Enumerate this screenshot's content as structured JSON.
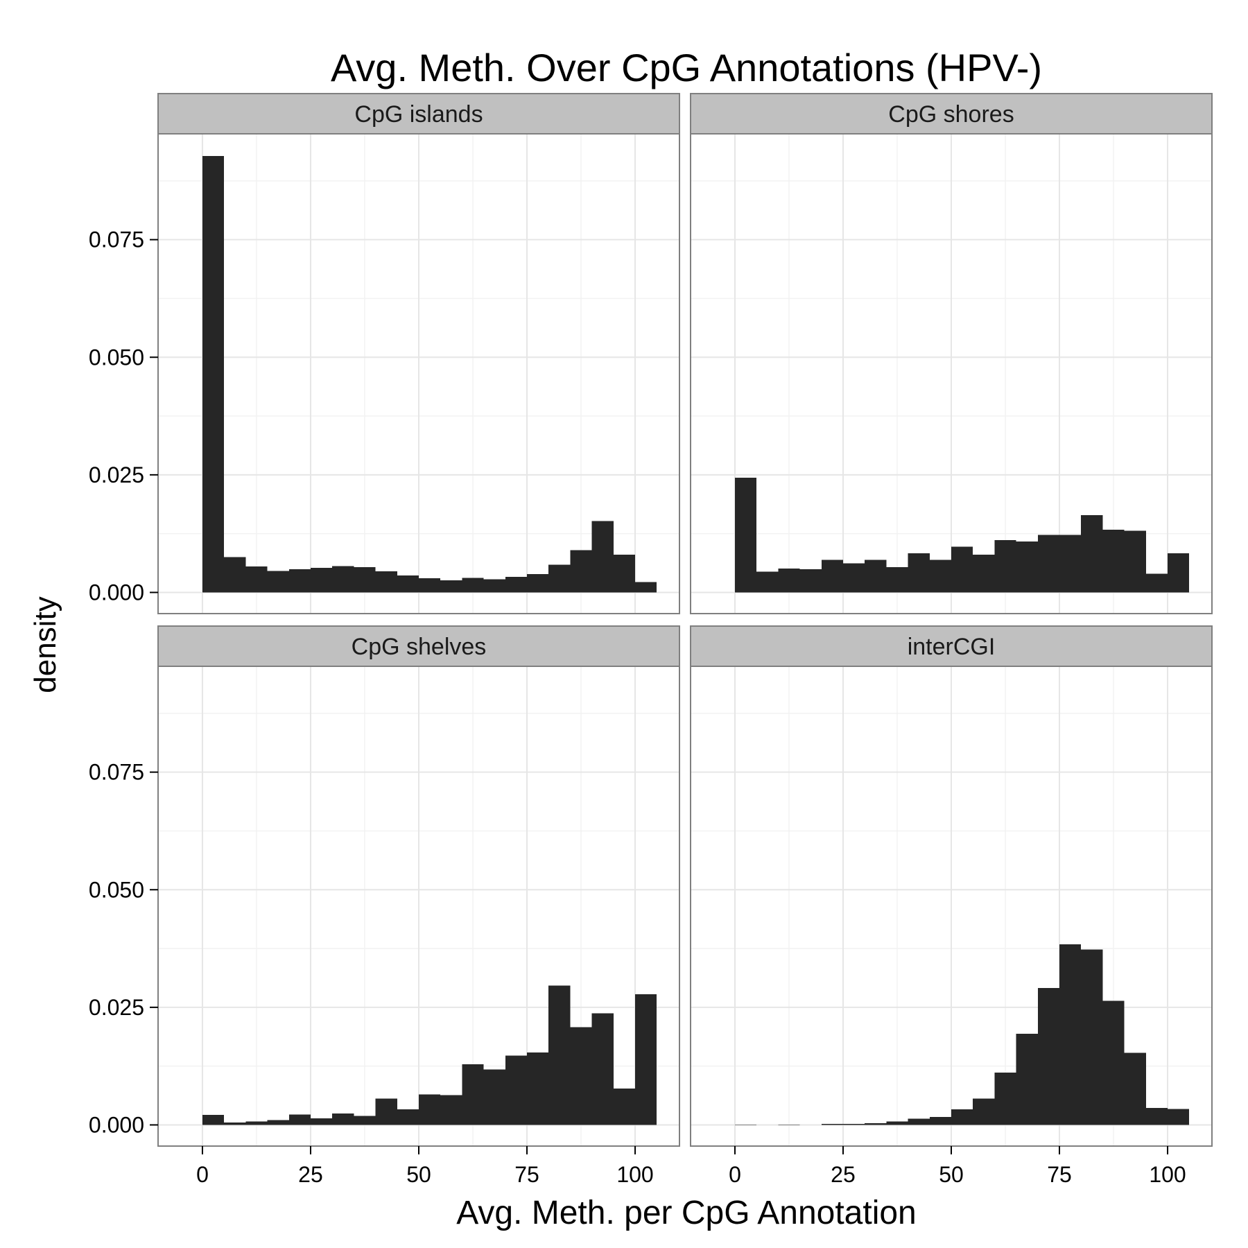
{
  "chart_data": {
    "type": "bar",
    "title": "Avg. Meth. Over CpG Annotations (HPV-)",
    "xlabel": "Avg. Meth. per CpG Annotation",
    "ylabel": "density",
    "xlim": [
      -10.25,
      110.25
    ],
    "ylim": [
      -0.0045,
      0.0975
    ],
    "x_ticks": [
      0,
      25,
      50,
      75,
      100
    ],
    "x_tick_labels": [
      "0",
      "25",
      "50",
      "75",
      "100"
    ],
    "y_ticks": [
      0,
      0.025,
      0.05,
      0.075
    ],
    "y_tick_labels": [
      "0.000",
      "0.025",
      "0.050",
      "0.075"
    ],
    "grid": true,
    "bin_width": 5,
    "categories": [
      0,
      5,
      10,
      15,
      20,
      25,
      30,
      35,
      40,
      45,
      50,
      55,
      60,
      65,
      70,
      75,
      80,
      85,
      90,
      95,
      100
    ],
    "panels": [
      {
        "name": "CpG islands",
        "values": [
          0.0928,
          0.0075,
          0.0055,
          0.0046,
          0.0049,
          0.0052,
          0.0056,
          0.0054,
          0.0045,
          0.0036,
          0.003,
          0.0026,
          0.0031,
          0.0028,
          0.0033,
          0.0039,
          0.0059,
          0.009,
          0.0152,
          0.008,
          0.0022
        ]
      },
      {
        "name": "CpG shores",
        "values": [
          0.0244,
          0.0044,
          0.0051,
          0.0049,
          0.0069,
          0.0062,
          0.0069,
          0.0054,
          0.0083,
          0.0069,
          0.0097,
          0.008,
          0.0111,
          0.0108,
          0.0122,
          0.0122,
          0.0164,
          0.0133,
          0.0131,
          0.004,
          0.0083
        ]
      },
      {
        "name": "CpG shelves",
        "values": [
          0.0021,
          0.0005,
          0.0007,
          0.001,
          0.0022,
          0.0014,
          0.0024,
          0.0019,
          0.0056,
          0.0033,
          0.0065,
          0.0063,
          0.0129,
          0.0118,
          0.0147,
          0.0154,
          0.0296,
          0.0208,
          0.0237,
          0.0077,
          0.0278
        ]
      },
      {
        "name": "interCGI",
        "values": [
          0.0001,
          0.0,
          0.0001,
          0.0,
          0.0002,
          0.0002,
          0.0004,
          0.0007,
          0.0013,
          0.0017,
          0.0033,
          0.0056,
          0.0111,
          0.0194,
          0.0291,
          0.0384,
          0.0373,
          0.0264,
          0.0153,
          0.0036,
          0.0034
        ]
      }
    ],
    "colors": {
      "bar": "#262626",
      "panel_border": "#7f7f7f",
      "strip_fill": "#c0c0c0",
      "grid_major": "#e6e6e6",
      "grid_minor": "#f2f2f2",
      "tick": "#000000"
    }
  }
}
